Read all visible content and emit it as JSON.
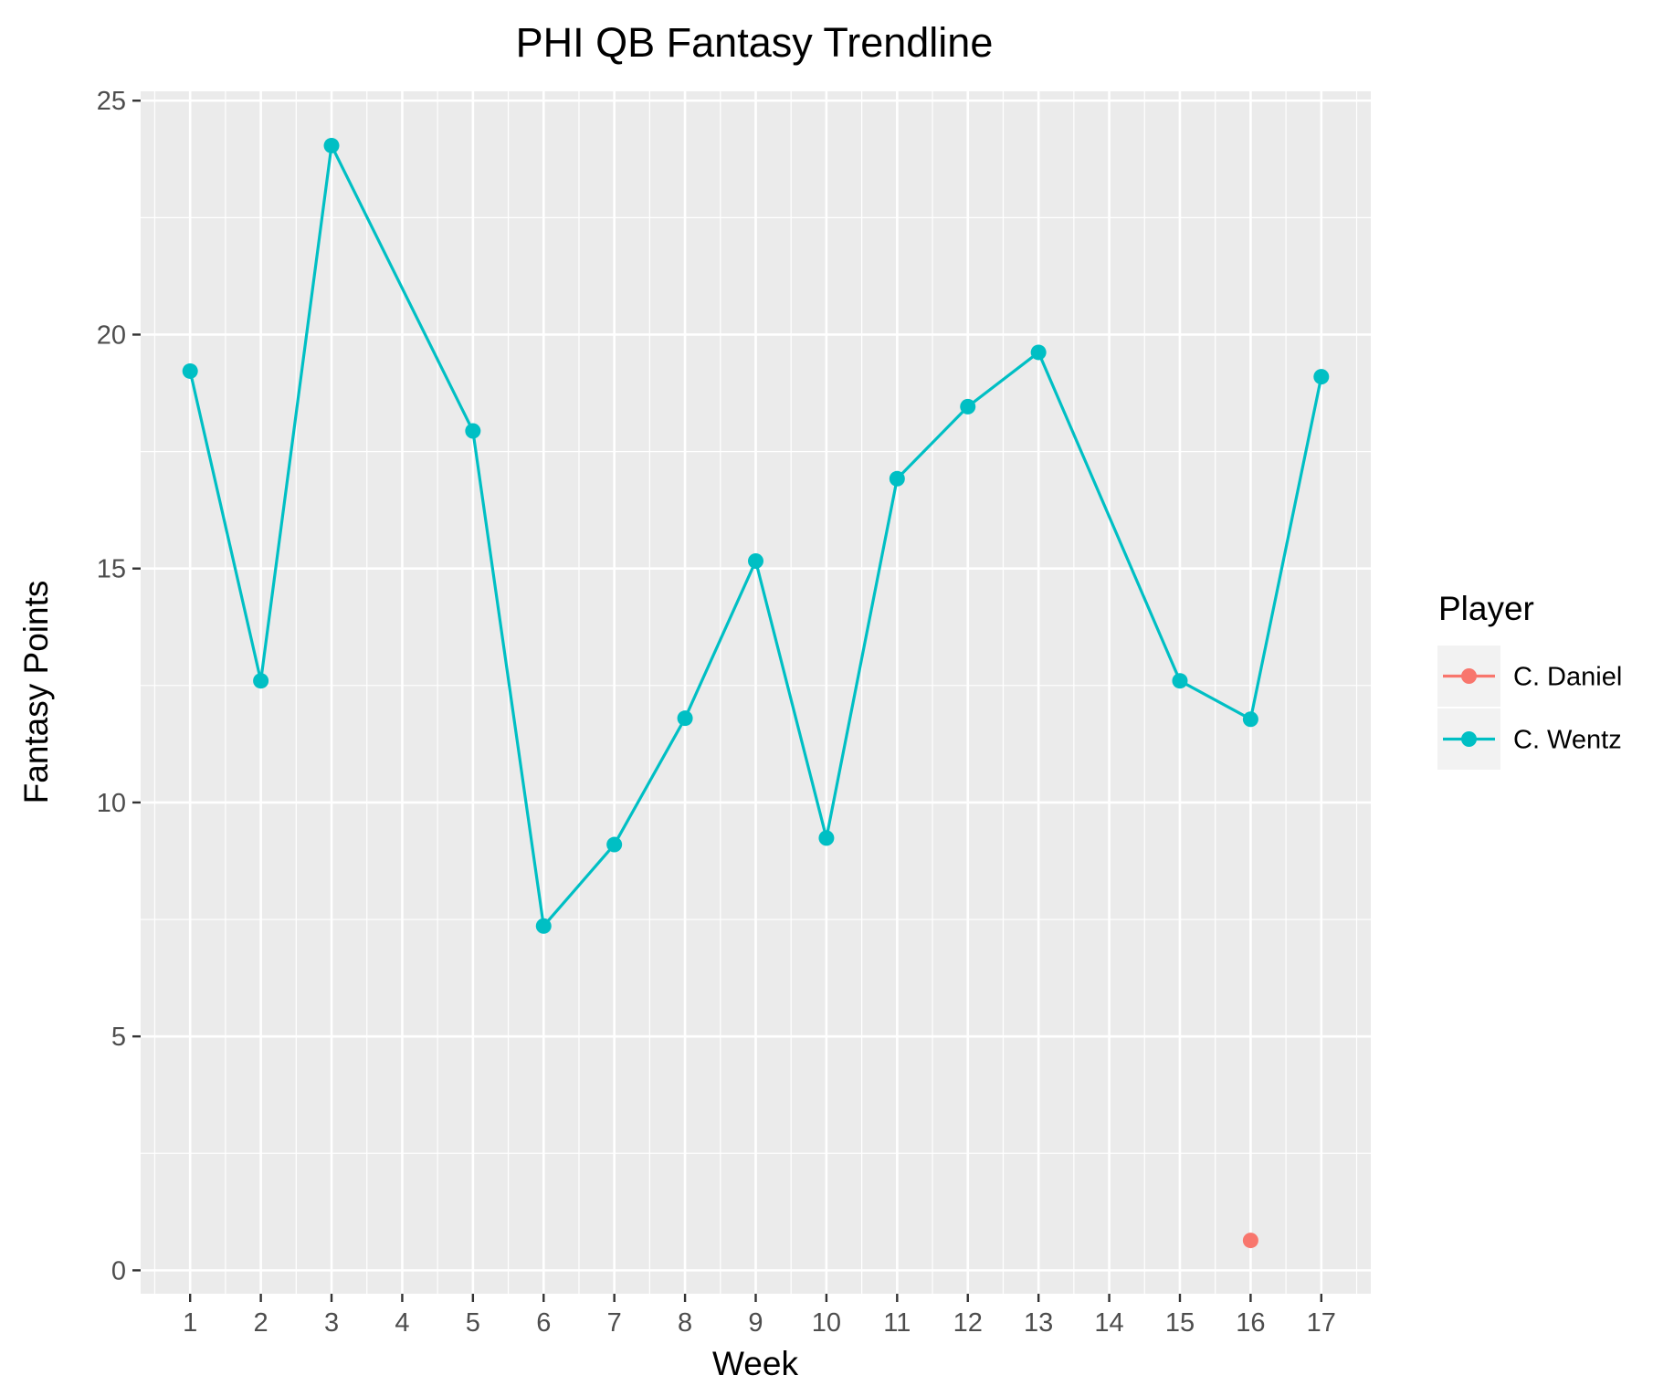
{
  "chart_data": {
    "type": "line",
    "title": "PHI QB Fantasy Trendline",
    "xlabel": "Week",
    "ylabel": "Fantasy Points",
    "x_ticks": [
      "1",
      "2",
      "3",
      "4",
      "5",
      "6",
      "7",
      "8",
      "9",
      "10",
      "11",
      "12",
      "13",
      "14",
      "15",
      "16",
      "17"
    ],
    "y_ticks": [
      "0",
      "5",
      "10",
      "15",
      "20",
      "25"
    ],
    "xlim": [
      0.3,
      17.7
    ],
    "ylim": [
      -0.5,
      25.2
    ],
    "grid": true,
    "legend_position": "right",
    "legend_title": "Player",
    "series": [
      {
        "name": "C. Daniel",
        "color": "#F8766D",
        "x": [
          16
        ],
        "y": [
          0.64
        ]
      },
      {
        "name": "C. Wentz",
        "color": "#00BFC4",
        "x": [
          1,
          2,
          3,
          5,
          6,
          7,
          8,
          9,
          10,
          11,
          12,
          13,
          15,
          16,
          17
        ],
        "y": [
          19.22,
          12.6,
          24.04,
          17.94,
          7.36,
          9.1,
          11.8,
          15.16,
          9.24,
          16.92,
          18.46,
          19.62,
          12.6,
          11.78,
          19.1
        ]
      }
    ]
  }
}
